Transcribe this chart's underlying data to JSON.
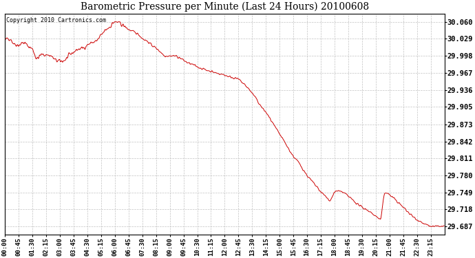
{
  "title": "Barometric Pressure per Minute (Last 24 Hours) 20100608",
  "copyright_text": "Copyright 2010 Cartronics.com",
  "line_color": "#cc0000",
  "background_color": "#ffffff",
  "grid_color": "#bbbbbb",
  "yticks": [
    29.687,
    29.718,
    29.749,
    29.78,
    29.811,
    29.842,
    29.873,
    29.905,
    29.936,
    29.967,
    29.998,
    30.029,
    30.06
  ],
  "ytick_labels": [
    "29.687",
    "29.718",
    "29.749",
    "29.780",
    "29.811",
    "29.842",
    "29.873",
    "29.905",
    "29.936",
    "29.967",
    "29.998",
    "30.029",
    "30.060"
  ],
  "ylim": [
    29.672,
    30.075
  ],
  "xtick_labels": [
    "00:00",
    "00:45",
    "01:30",
    "02:15",
    "03:00",
    "03:45",
    "04:30",
    "05:15",
    "06:00",
    "06:45",
    "07:30",
    "08:15",
    "09:00",
    "09:45",
    "10:30",
    "11:15",
    "12:00",
    "12:45",
    "13:30",
    "14:15",
    "15:00",
    "15:45",
    "16:30",
    "17:15",
    "18:00",
    "18:45",
    "19:30",
    "20:15",
    "21:00",
    "21:45",
    "22:30",
    "23:15"
  ],
  "figsize": [
    6.9,
    3.75
  ],
  "dpi": 100
}
